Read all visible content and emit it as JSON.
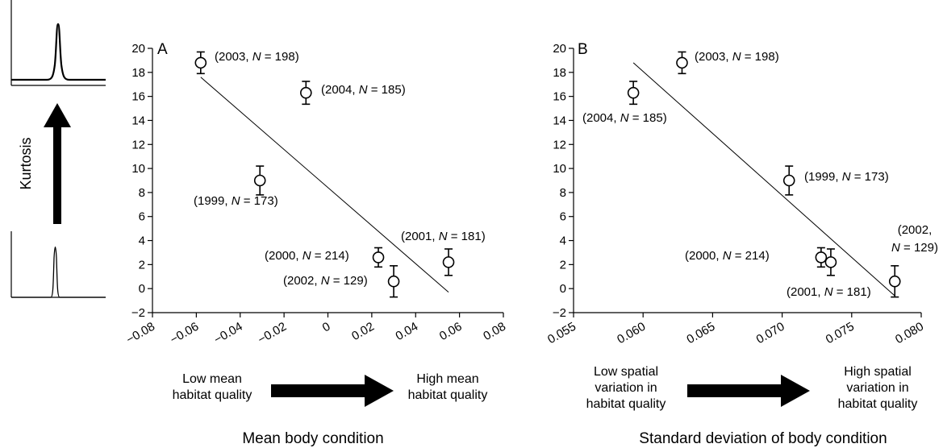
{
  "kurtosis_label": "Kurtosis",
  "chart_data": [
    {
      "type": "scatter",
      "panel": "A",
      "title": "",
      "xlabel": "Mean body condition",
      "ylabel": "",
      "xlim": [
        -0.08,
        0.08
      ],
      "ylim": [
        -2,
        20
      ],
      "xticks": [
        "−0.08",
        "−0.06",
        "−0.04",
        "−0.02",
        "0",
        "0.02",
        "0.04",
        "0.06",
        "0.08"
      ],
      "yticks": [
        "−2",
        "0",
        "2",
        "4",
        "6",
        "8",
        "10",
        "12",
        "14",
        "16",
        "18",
        "20"
      ],
      "grid": false,
      "points": [
        {
          "year": "2003",
          "x": -0.058,
          "y": 18.8,
          "err": 0.9,
          "n": "198"
        },
        {
          "year": "2004",
          "x": -0.01,
          "y": 16.3,
          "err": 0.95,
          "n": "185"
        },
        {
          "year": "1999",
          "x": -0.031,
          "y": 9.0,
          "err": 1.2,
          "n": "173"
        },
        {
          "year": "2000",
          "x": 0.023,
          "y": 2.6,
          "err": 0.8,
          "n": "214"
        },
        {
          "year": "2002",
          "x": 0.03,
          "y": 0.6,
          "err": 1.3,
          "n": "129"
        },
        {
          "year": "2001",
          "x": 0.055,
          "y": 2.2,
          "err": 1.1,
          "n": "181"
        }
      ],
      "trend_line": {
        "x": [
          -0.058,
          0.055
        ],
        "y": [
          17.6,
          -0.3
        ]
      },
      "low_caption": [
        "Low mean",
        "habitat quality"
      ],
      "high_caption": [
        "High mean",
        "habitat quality"
      ]
    },
    {
      "type": "scatter",
      "panel": "B",
      "title": "",
      "xlabel": "Standard deviation of body condition",
      "ylabel": "",
      "xlim": [
        0.055,
        0.08
      ],
      "ylim": [
        -2,
        20
      ],
      "xticks": [
        "0.055",
        "0.060",
        "0.065",
        "0.070",
        "0.075",
        "0.080"
      ],
      "yticks": [
        "−2",
        "0",
        "2",
        "4",
        "6",
        "8",
        "10",
        "12",
        "14",
        "16",
        "18",
        "20"
      ],
      "grid": false,
      "points": [
        {
          "year": "2003",
          "x": 0.0628,
          "y": 18.8,
          "err": 0.9,
          "n": "198"
        },
        {
          "year": "2004",
          "x": 0.0593,
          "y": 16.3,
          "err": 0.95,
          "n": "185"
        },
        {
          "year": "1999",
          "x": 0.0705,
          "y": 9.0,
          "err": 1.2,
          "n": "173"
        },
        {
          "year": "2000",
          "x": 0.0728,
          "y": 2.6,
          "err": 0.8,
          "n": "214"
        },
        {
          "year": "2001",
          "x": 0.0735,
          "y": 2.2,
          "err": 1.1,
          "n": "181"
        },
        {
          "year": "2002",
          "x": 0.0781,
          "y": 0.6,
          "err": 1.3,
          "n": "129"
        }
      ],
      "trend_line": {
        "x": [
          0.0593,
          0.0781
        ],
        "y": [
          18.8,
          -0.6
        ]
      },
      "low_caption": [
        "Low spatial",
        "variation in",
        "habitat quality"
      ],
      "high_caption": [
        "High spatial",
        "variation in",
        "habitat quality"
      ]
    }
  ]
}
